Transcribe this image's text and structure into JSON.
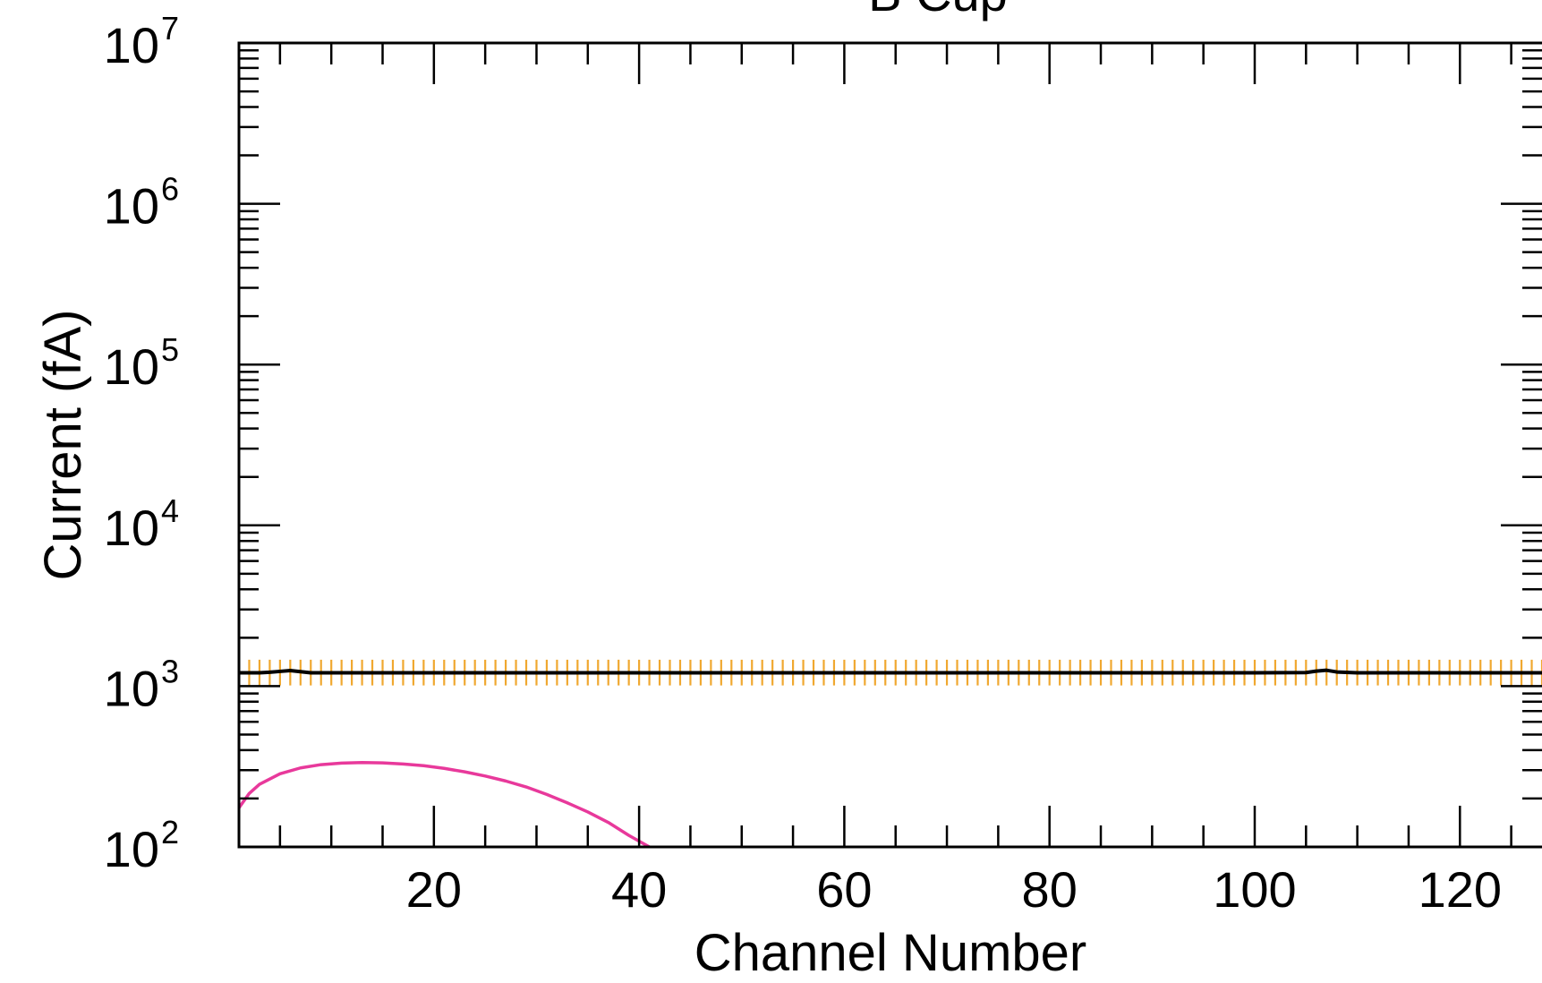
{
  "chart_data": {
    "type": "line",
    "title": "B Cup",
    "xlabel": "Channel Number",
    "ylabel": "Current (fA)",
    "x_scale": "linear",
    "y_scale": "log",
    "xlim": [
      1,
      128
    ],
    "ylim": [
      100,
      10000000
    ],
    "grid": false,
    "x_ticks": [
      20,
      40,
      60,
      80,
      100,
      120
    ],
    "x_tick_labels": [
      "20",
      "40",
      "60",
      "80",
      "100",
      "120"
    ],
    "y_ticks": [
      {
        "value": 100,
        "base": "10",
        "exp": "2"
      },
      {
        "value": 1000,
        "base": "10",
        "exp": "3"
      },
      {
        "value": 10000,
        "base": "10",
        "exp": "4"
      },
      {
        "value": 100000,
        "base": "10",
        "exp": "5"
      },
      {
        "value": 1000000,
        "base": "10",
        "exp": "6"
      },
      {
        "value": 10000000,
        "base": "10",
        "exp": "7"
      }
    ],
    "series": [
      {
        "color": "#000000",
        "style": "measured",
        "x": [
          1,
          2,
          3,
          4,
          5,
          6,
          7,
          8,
          10,
          20,
          30,
          40,
          50,
          60,
          70,
          80,
          90,
          100,
          105,
          106,
          107,
          108,
          110,
          120,
          128
        ],
        "y": [
          1210,
          1210,
          1210,
          1220,
          1235,
          1250,
          1230,
          1210,
          1210,
          1210,
          1210,
          1210,
          1210,
          1210,
          1210,
          1210,
          1210,
          1210,
          1215,
          1240,
          1255,
          1225,
          1210,
          1210,
          1210
        ],
        "error_bar_color": "#f0a830",
        "error_lower": 1010,
        "error_upper": 1460,
        "error_bar_count": 128
      },
      {
        "color": "#e8399b",
        "style": "model",
        "x": [
          1,
          2,
          3,
          5,
          7,
          9,
          11,
          13,
          15,
          17,
          19,
          21,
          23,
          25,
          27,
          29,
          31,
          33,
          35,
          37,
          39,
          41
        ],
        "y": [
          175,
          215,
          245,
          285,
          310,
          325,
          332,
          335,
          333,
          328,
          320,
          308,
          293,
          276,
          257,
          236,
          212,
          188,
          165,
          142,
          118,
          100
        ]
      }
    ]
  }
}
